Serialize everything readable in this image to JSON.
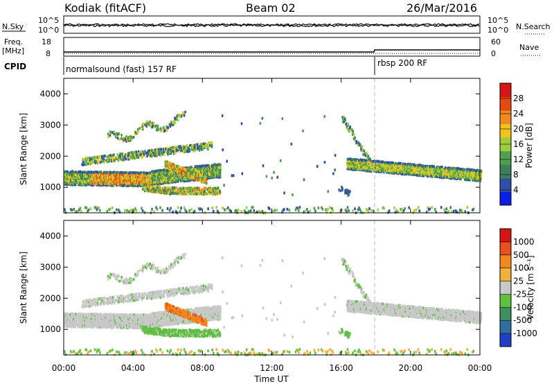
{
  "header": {
    "station": "Kodiak (fitACF)",
    "beam": "Beam 02",
    "date": "26/Mar/2016"
  },
  "noise_panel": {
    "left_label": "N.Sky",
    "left_ticks": [
      "10^5",
      "10^0"
    ],
    "right_ticks": [
      "10^5",
      "10^0"
    ],
    "right_label": "N.Search"
  },
  "freq_panel": {
    "left_label_top": "Freq.",
    "left_label_bottom": "[MHz]",
    "left_ticks": [
      "18",
      "8"
    ],
    "right_ticks": [
      "60",
      "0"
    ],
    "right_label": "Nave"
  },
  "cpid": {
    "label": "CPID",
    "segments": [
      {
        "text": "normalsound (fast) 157 RF",
        "start_hour": 0
      },
      {
        "text": "rbsp 200 RF",
        "start_hour": 18
      }
    ]
  },
  "x_axis": {
    "ticks": [
      "00:00",
      "04:00",
      "08:00",
      "12:00",
      "16:00",
      "20:00",
      "00:00"
    ],
    "label": "Time UT"
  },
  "power_panel": {
    "ylabel": "Slant Range [km]",
    "yticks": [
      "4000",
      "3000",
      "2000",
      "1000"
    ],
    "colorbar_label": "Power [dB]",
    "colorbar_ticks": [
      "28",
      "24",
      "20",
      "16",
      "12",
      "8",
      "4"
    ],
    "colors": [
      "#0a1ee6",
      "#2f4fa8",
      "#3c7f5e",
      "#4f9f4f",
      "#9fcc3c",
      "#f2c21e",
      "#f08a1e",
      "#e44a14",
      "#d61414"
    ]
  },
  "velocity_panel": {
    "ylabel": "Slant Range [km]",
    "yticks": [
      "4000",
      "3000",
      "2000",
      "1000"
    ],
    "colorbar_label": "Velocity [m s⁻¹]",
    "colorbar_ticks": [
      "1000",
      "500",
      "100",
      "25",
      "-25",
      "-100",
      "-500",
      "-1000"
    ],
    "colors": [
      "#1f3fc8",
      "#2f6fa0",
      "#3f8f5f",
      "#5fbf3f",
      "#c8c8c8",
      "#f0b03c",
      "#f08a1e",
      "#e8501e",
      "#d61414"
    ]
  },
  "chart_data": {
    "type": "heatmap",
    "x_range_hours": [
      0,
      24
    ],
    "y_range_km": [
      180,
      4500
    ],
    "cpid_change_hour": 18,
    "echo_regions": [
      {
        "name": "main band",
        "t0": 0,
        "t1": 9,
        "r0": 1100,
        "r1": 1600
      },
      {
        "name": "upper streak",
        "t0": 1,
        "t1": 8.5,
        "r0": 1800,
        "r1": 2500
      },
      {
        "name": "high arcs",
        "t0": 2.5,
        "t1": 7,
        "r0": 2500,
        "r1": 3500
      },
      {
        "name": "lower band",
        "t0": 4.5,
        "t1": 9,
        "r0": 700,
        "r1": 1200
      },
      {
        "name": "evening band",
        "t0": 16.3,
        "t1": 24,
        "r0": 1200,
        "r1": 2000
      },
      {
        "name": "evening arcs",
        "t0": 16,
        "t1": 18,
        "r0": 2000,
        "r1": 3400
      },
      {
        "name": "ground scatter",
        "t0": 0,
        "t1": 24,
        "r0": 180,
        "r1": 400
      }
    ]
  }
}
